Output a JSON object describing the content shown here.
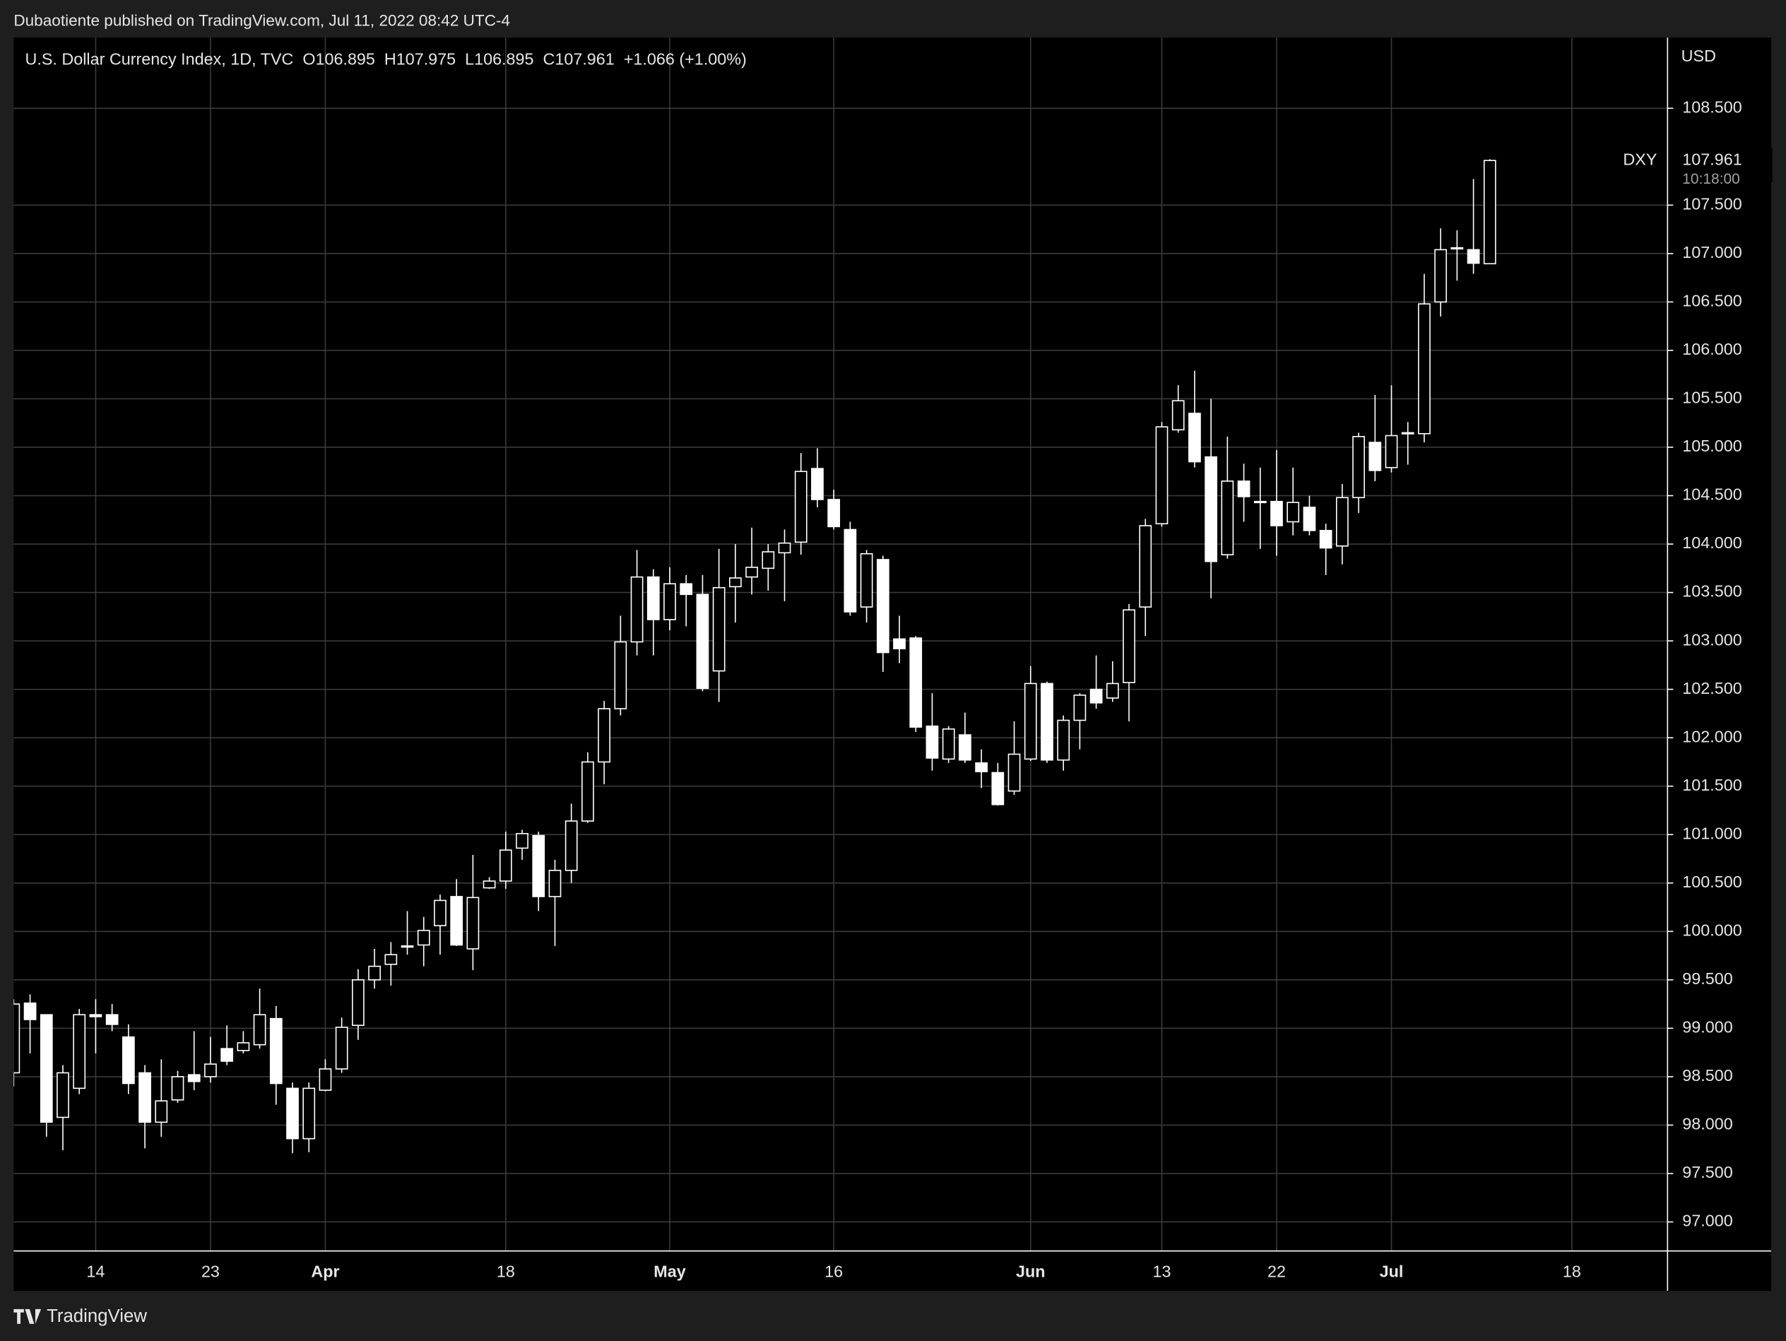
{
  "header": {
    "credit": "Dubaotiente published on TradingView.com, Jul 11, 2022 08:42 UTC-4"
  },
  "footer": {
    "brand": "TradingView"
  },
  "chart_data": {
    "type": "candlestick",
    "legend_text": {
      "symbol": "U.S. Dollar Currency Index, 1D, TVC",
      "open": "O106.895",
      "high": "H107.975",
      "low": "L106.895",
      "close": "C107.961",
      "change": "+1.066 (+1.00%)"
    },
    "y_axis_title": "USD",
    "last_price": {
      "symbol": "DXY",
      "value": 107.961,
      "countdown": "10:18:00"
    },
    "categories": [
      null,
      null,
      null,
      null,
      null,
      "14",
      null,
      null,
      null,
      null,
      null,
      null,
      "23",
      null,
      null,
      null,
      null,
      null,
      null,
      "Apr",
      null,
      null,
      null,
      null,
      null,
      null,
      null,
      null,
      null,
      null,
      "18",
      null,
      null,
      null,
      null,
      null,
      null,
      null,
      null,
      null,
      "May",
      null,
      null,
      null,
      null,
      null,
      null,
      null,
      null,
      null,
      "16",
      null,
      null,
      null,
      null,
      null,
      null,
      null,
      null,
      null,
      null,
      null,
      "Jun",
      null,
      null,
      null,
      null,
      null,
      null,
      null,
      "13",
      null,
      null,
      null,
      null,
      null,
      null,
      "22",
      null,
      null,
      null,
      null,
      null,
      null,
      "Jul",
      null,
      null,
      null,
      null,
      null,
      null,
      null,
      null,
      null,
      null,
      "18"
    ],
    "series": {
      "open": [
        98.54,
        99.26,
        99.14,
        98.08,
        98.38,
        99.14,
        99.14,
        98.91,
        98.54,
        98.03,
        98.26,
        98.52,
        98.5,
        98.79,
        98.77,
        98.83,
        99.1,
        98.38,
        97.86,
        98.36,
        98.58,
        99.03,
        99.5,
        99.66,
        99.84,
        99.86,
        100.06,
        100.36,
        99.82,
        100.45,
        100.52,
        100.86,
        100.99,
        100.36,
        100.63,
        101.14,
        101.75,
        102.3,
        102.99,
        103.66,
        103.22,
        103.59,
        103.48,
        102.69,
        103.56,
        103.66,
        103.75,
        103.91,
        104.02,
        104.78,
        104.46,
        104.15,
        103.35,
        103.84,
        103.02,
        103.03,
        102.12,
        101.78,
        102.03,
        101.74,
        101.64,
        101.45,
        101.78,
        102.56,
        101.77,
        102.18,
        102.5,
        102.41,
        102.57,
        103.35,
        104.21,
        105.18,
        105.35,
        104.9,
        103.89,
        104.65,
        104.44,
        104.44,
        104.23,
        104.38,
        104.14,
        103.98,
        104.48,
        105.05,
        104.79,
        105.14,
        105.14,
        106.5,
        107.05,
        107.04,
        106.895,
        null,
        null,
        null,
        null,
        null
      ],
      "high": [
        99.3,
        99.35,
        99.14,
        98.62,
        99.2,
        99.3,
        99.25,
        99.04,
        98.62,
        98.68,
        98.56,
        98.97,
        98.91,
        99.03,
        98.97,
        99.41,
        99.23,
        98.44,
        98.44,
        98.68,
        99.11,
        99.61,
        99.82,
        99.89,
        100.21,
        100.15,
        100.38,
        100.54,
        100.79,
        100.56,
        101.03,
        101.05,
        101.03,
        100.74,
        101.32,
        101.85,
        102.38,
        103.26,
        103.94,
        103.74,
        103.76,
        103.68,
        103.68,
        103.95,
        104.0,
        104.17,
        104.0,
        104.15,
        104.94,
        104.99,
        104.56,
        104.23,
        103.94,
        103.88,
        103.26,
        103.05,
        102.46,
        102.12,
        102.26,
        101.88,
        101.74,
        102.17,
        102.74,
        102.58,
        102.23,
        102.46,
        102.85,
        102.79,
        103.38,
        104.26,
        105.26,
        105.64,
        105.79,
        105.5,
        105.11,
        104.83,
        104.79,
        104.97,
        104.79,
        104.5,
        104.21,
        104.62,
        105.15,
        105.54,
        105.64,
        105.26,
        106.79,
        107.26,
        107.24,
        107.77,
        107.975,
        null,
        null,
        null,
        null,
        null
      ],
      "low": [
        98.4,
        98.74,
        97.88,
        97.74,
        98.32,
        98.74,
        98.97,
        98.32,
        97.76,
        97.88,
        98.23,
        98.36,
        98.44,
        98.62,
        98.74,
        98.79,
        98.21,
        97.71,
        97.72,
        98.35,
        98.54,
        98.88,
        99.41,
        99.44,
        99.76,
        99.64,
        99.76,
        99.85,
        99.6,
        100.44,
        100.44,
        100.74,
        100.21,
        99.85,
        100.5,
        101.12,
        101.52,
        102.23,
        102.85,
        102.85,
        103.11,
        103.15,
        102.48,
        102.37,
        103.19,
        103.48,
        103.52,
        103.41,
        103.89,
        104.38,
        104.15,
        103.26,
        103.19,
        102.68,
        102.77,
        102.06,
        101.66,
        101.74,
        101.74,
        101.48,
        101.3,
        101.41,
        101.76,
        101.74,
        101.66,
        101.88,
        102.3,
        102.37,
        102.17,
        103.05,
        104.18,
        105.15,
        104.79,
        103.44,
        103.85,
        104.23,
        103.95,
        103.88,
        104.09,
        104.09,
        103.68,
        103.79,
        104.32,
        104.65,
        104.74,
        104.82,
        105.05,
        106.35,
        106.72,
        106.79,
        106.895,
        null,
        null,
        null,
        null,
        null
      ],
      "close": [
        99.25,
        99.09,
        98.03,
        98.54,
        99.14,
        99.12,
        99.04,
        98.43,
        98.03,
        98.25,
        98.5,
        98.45,
        98.63,
        98.66,
        98.85,
        99.14,
        98.43,
        97.86,
        98.38,
        98.58,
        99.01,
        99.5,
        99.64,
        99.76,
        99.85,
        100.01,
        100.32,
        99.86,
        100.35,
        100.52,
        100.84,
        101.01,
        100.36,
        100.63,
        101.14,
        101.75,
        102.3,
        102.99,
        103.66,
        103.22,
        103.59,
        103.48,
        102.51,
        103.55,
        103.65,
        103.76,
        103.92,
        104.01,
        104.75,
        104.46,
        104.18,
        103.3,
        103.9,
        102.88,
        102.92,
        102.11,
        101.79,
        102.09,
        101.77,
        101.65,
        101.31,
        101.83,
        102.56,
        101.77,
        102.18,
        102.44,
        102.36,
        102.56,
        103.32,
        104.19,
        105.21,
        105.48,
        104.85,
        103.82,
        104.65,
        104.49,
        104.44,
        104.19,
        104.43,
        104.14,
        103.96,
        104.48,
        105.11,
        104.76,
        105.12,
        105.15,
        106.48,
        107.04,
        107.06,
        106.9,
        107.961,
        null,
        null,
        null,
        null,
        null
      ]
    },
    "up_color": "#000000",
    "down_color": "#ffffff",
    "wick_color": "#ffffff",
    "ylim": [
      96.7,
      109.23
    ],
    "yticks": [
      {
        "value": 97,
        "label": "97.000"
      },
      {
        "value": 97.5,
        "label": "97.500"
      },
      {
        "value": 98,
        "label": "98.000"
      },
      {
        "value": 98.5,
        "label": "98.500"
      },
      {
        "value": 99,
        "label": "99.000"
      },
      {
        "value": 99.5,
        "label": "99.500"
      },
      {
        "value": 100,
        "label": "100.000"
      },
      {
        "value": 100.5,
        "label": "100.500"
      },
      {
        "value": 101,
        "label": "101.000"
      },
      {
        "value": 101.5,
        "label": "101.500"
      },
      {
        "value": 102,
        "label": "102.000"
      },
      {
        "value": 102.5,
        "label": "102.500"
      },
      {
        "value": 103,
        "label": "103.000"
      },
      {
        "value": 103.5,
        "label": "103.500"
      },
      {
        "value": 104,
        "label": "104.000"
      },
      {
        "value": 104.5,
        "label": "104.500"
      },
      {
        "value": 105,
        "label": "105.000"
      },
      {
        "value": 105.5,
        "label": "105.500"
      },
      {
        "value": 106,
        "label": "106.000"
      },
      {
        "value": 106.5,
        "label": "106.500"
      },
      {
        "value": 107,
        "label": "107.000"
      },
      {
        "value": 107.5,
        "label": "107.500"
      },
      {
        "value": 108.5,
        "label": "108.500"
      }
    ],
    "grid": true
  }
}
